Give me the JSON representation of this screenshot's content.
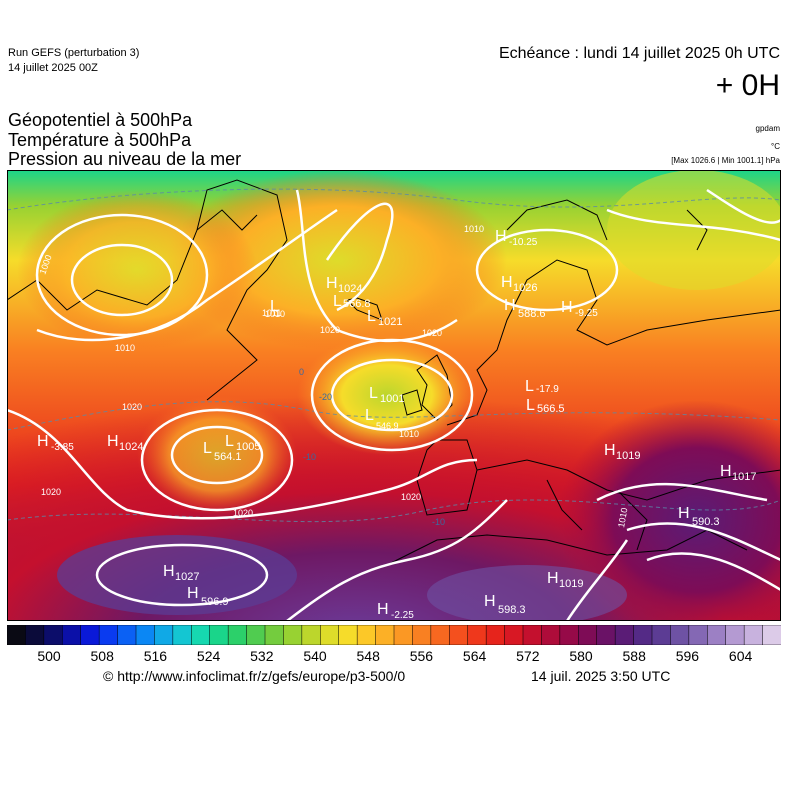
{
  "header": {
    "run_label": "Run GEFS (perturbation 3)",
    "run_date": "14 juillet 2025 00Z",
    "echeance": "Echéance : lundi 14 juillet 2025 0h UTC",
    "offset": "+ 0H"
  },
  "titles": {
    "line1": "Géopotentiel à 500hPa",
    "line2": "Température à 500hPa",
    "line3": "Pression au niveau de la mer"
  },
  "units": {
    "geopotential": "gpdam",
    "temperature": "°C",
    "minmax": "[Max 1026.6 | Min 1001.1] hPa"
  },
  "map": {
    "pressure_centers": [
      {
        "type": "H",
        "value": "1024"
      },
      {
        "type": "H",
        "value": "1027"
      },
      {
        "type": "H",
        "value": "1019"
      },
      {
        "type": "H",
        "value": "1019"
      },
      {
        "type": "H",
        "value": "1017"
      },
      {
        "type": "H",
        "value": "1026"
      },
      {
        "type": "H",
        "value": "1024"
      },
      {
        "type": "L",
        "value": "1005"
      },
      {
        "type": "L",
        "value": "1001"
      },
      {
        "type": "L",
        "value": "1021"
      },
      {
        "type": "L",
        "value": "1011"
      }
    ],
    "geopotential_centers": [
      {
        "type": "H",
        "value": "596.9"
      },
      {
        "type": "H",
        "value": "598.3"
      },
      {
        "type": "H",
        "value": "588.6"
      },
      {
        "type": "H",
        "value": "590.3"
      },
      {
        "type": "L",
        "value": "564.1"
      },
      {
        "type": "L",
        "value": "566.8"
      },
      {
        "type": "L",
        "value": "566.5"
      },
      {
        "type": "L",
        "value": "546.9"
      }
    ],
    "temperature_centers": [
      {
        "type": "H",
        "value": "-3.85"
      },
      {
        "type": "H",
        "value": "-10.25"
      },
      {
        "type": "H",
        "value": "-9.25"
      },
      {
        "type": "H",
        "value": "-2.25"
      },
      {
        "type": "L",
        "value": "-17.9"
      }
    ],
    "isobar_labels": [
      "1000",
      "1010",
      "1010",
      "1010",
      "1010",
      "1020",
      "1020",
      "1020",
      "1020",
      "1020",
      "1020",
      "1010"
    ],
    "isotherm_labels": [
      "-20",
      "-10",
      "-10",
      "0"
    ]
  },
  "scale": {
    "labels": [
      "500",
      "508",
      "516",
      "524",
      "532",
      "540",
      "548",
      "556",
      "564",
      "572",
      "580",
      "588",
      "596",
      "604"
    ],
    "colors": [
      "#0a0a14",
      "#0b0b3a",
      "#0c0d6a",
      "#0b10a8",
      "#0a19d8",
      "#0a3bf0",
      "#0b61f4",
      "#0b87f4",
      "#10a9e6",
      "#14c6d2",
      "#16d8b0",
      "#1ad58a",
      "#2cd06a",
      "#50cc50",
      "#74cc3e",
      "#98d232",
      "#bcd62c",
      "#dedc2a",
      "#f6dc2a",
      "#fcc828",
      "#fcb026",
      "#fb9824",
      "#f98022",
      "#f76820",
      "#f4501e",
      "#ef381c",
      "#e6241c",
      "#d81824",
      "#c4102e",
      "#ae0c3a",
      "#960a48",
      "#7e0c56",
      "#6a1266",
      "#5a1c76",
      "#542a86",
      "#5c3c94",
      "#6e52a4",
      "#8468b4",
      "#9c80c4",
      "#b49ad2",
      "#c8b2de",
      "#dccbe8"
    ]
  },
  "footer": {
    "credit": "© http://www.infoclimat.fr/z/gefs/europe/p3-500/0",
    "issued": "14 juil. 2025  3:50 UTC"
  }
}
